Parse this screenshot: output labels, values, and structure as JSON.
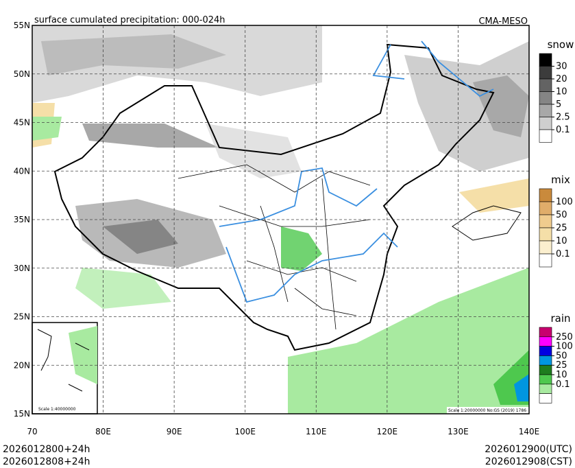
{
  "header": {
    "title": "surface cumulated precipitation: 000-024h",
    "model": "CMA-MESO"
  },
  "map": {
    "lat_labels": [
      "55N",
      "50N",
      "45N",
      "40N",
      "35N",
      "30N",
      "25N",
      "20N",
      "15N"
    ],
    "lon_labels": [
      "70",
      "80E",
      "90E",
      "100E",
      "110E",
      "120E",
      "130E",
      "140E"
    ],
    "inset_scale": "Scale 1:40000000",
    "main_scale": "Scale 1:20000000 No:GS (2019) 1786"
  },
  "legends": [
    {
      "title": "snow",
      "labels": [
        "30",
        "20",
        "10",
        "5",
        "2.5",
        "0.1"
      ],
      "colors": [
        "#000000",
        "#3c3c3c",
        "#636363",
        "#858585",
        "#a8a8a8",
        "#cfcfcf",
        "#ffffff"
      ]
    },
    {
      "title": "mix",
      "labels": [
        "100",
        "50",
        "25",
        "10",
        "0.1"
      ],
      "colors": [
        "#c98a3c",
        "#e0ad6a",
        "#f0cc8e",
        "#f5dfa8",
        "#fbefcf",
        "#ffffff"
      ]
    },
    {
      "title": "rain",
      "labels": [
        "250",
        "100",
        "50",
        "25",
        "10",
        "0.1"
      ],
      "colors": [
        "#c8006e",
        "#ff00ff",
        "#0000e0",
        "#0096e0",
        "#1e7d1e",
        "#4ec84e",
        "#a8eaa0",
        "#ffffff"
      ]
    }
  ],
  "footer": {
    "init_utc": "2026012800+24h",
    "init_cst": "2026012808+24h",
    "valid_utc": "2026012900(UTC)",
    "valid_cst": "2026012908(CST)"
  }
}
